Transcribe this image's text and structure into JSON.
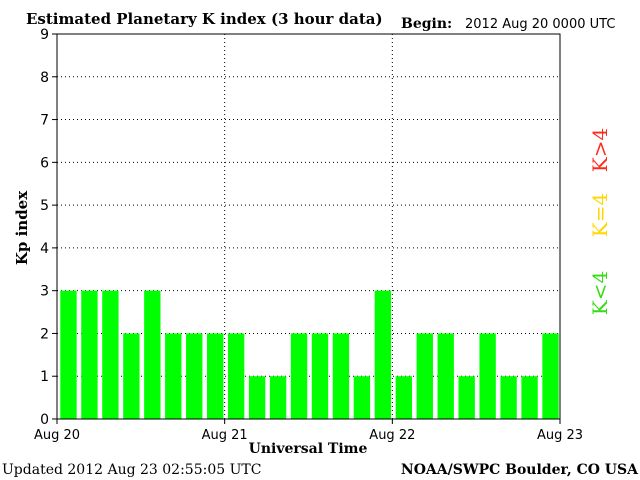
{
  "header": {
    "title": "Estimated Planetary K index (3 hour data)",
    "begin_label": "Begin:",
    "begin_value": "2012 Aug 20 0000 UTC"
  },
  "footer": {
    "updated": "Updated 2012 Aug 23 02:55:05 UTC",
    "source": "NOAA/SWPC Boulder, CO USA"
  },
  "legend": [
    {
      "label": "K>4",
      "color": "#ff2a1a"
    },
    {
      "label": "K=4",
      "color": "#ffd700"
    },
    {
      "label": "K<4",
      "color": "#33dd11"
    }
  ],
  "colors": {
    "bar": "#00ff00",
    "axis": "#000000",
    "grid": "#000000"
  },
  "chart_data": {
    "type": "bar",
    "title": "Estimated Planetary K index (3 hour data)",
    "xlabel": "Universal Time",
    "ylabel": "Kp index",
    "ylim": [
      0,
      9
    ],
    "yticks": [
      0,
      1,
      2,
      3,
      4,
      5,
      6,
      7,
      8,
      9
    ],
    "xtick_labels": [
      "Aug 20",
      "Aug 21",
      "Aug 22",
      "Aug 23"
    ],
    "grid": true,
    "values": [
      3,
      3,
      3,
      2,
      3,
      2,
      2,
      2,
      2,
      1,
      1,
      2,
      2,
      2,
      1,
      3,
      1,
      2,
      2,
      1,
      2,
      1,
      1,
      2
    ]
  }
}
